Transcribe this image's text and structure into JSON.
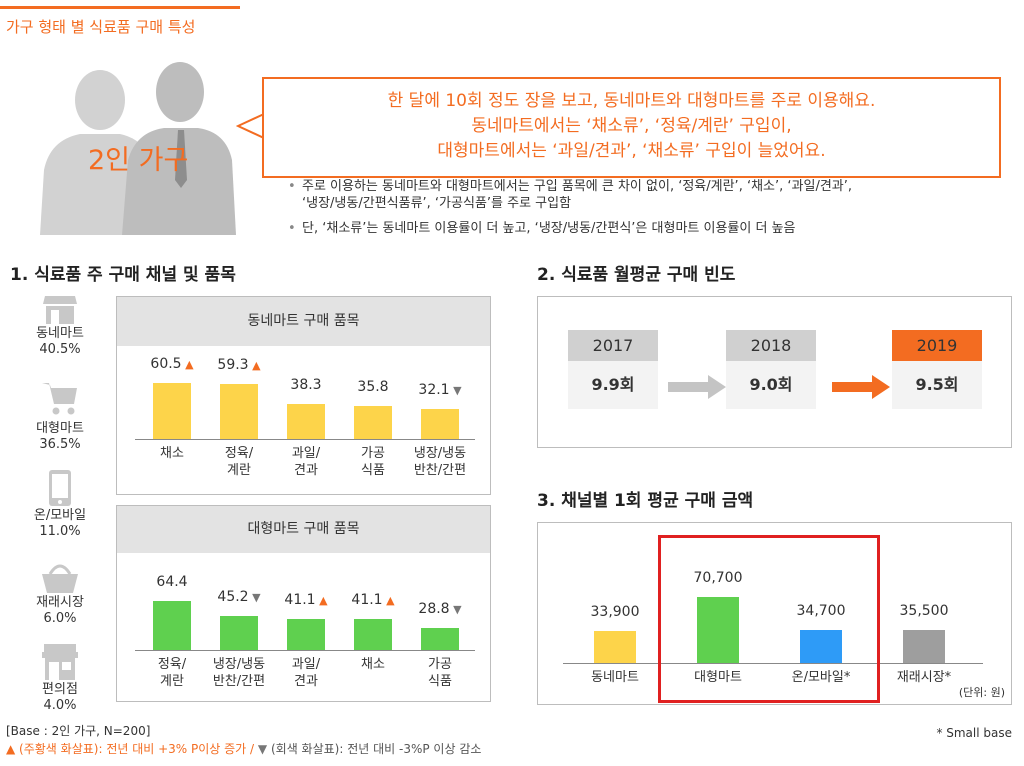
{
  "page": {
    "title": "가구 형태 별 식료품 구매 특성",
    "accent_color": "#f36c21"
  },
  "persona": {
    "label": "2인 가구",
    "callout_lines": [
      "한 달에 10회 정도 장을 보고, 동네마트와 대형마트를 주로 이용해요.",
      "동네마트에서는 ‘채소류’, ‘정육/계란’ 구입이,",
      "대형마트에서는 ‘과일/견과’, ‘채소류’ 구입이 늘었어요."
    ],
    "bullets": [
      "주로 이용하는 동네마트와 대형마트에서는  구입 품목에 큰 차이 없이, ‘정육/계란’, ‘채소’, ‘과일/견과’,",
      "‘냉장/냉동/간편식품류’, ‘가공식품’를 주로 구입함",
      "단, ‘채소류’는 동네마트 이용률이 더 높고, ‘냉장/냉동/간편식’은 대형마트 이용률이 더 높음"
    ]
  },
  "section1": {
    "title": "1. 식료품 주 구매 채널 및 품목",
    "channels": [
      {
        "name": "동네마트",
        "share": "40.5%",
        "icon": "store-icon"
      },
      {
        "name": "대형마트",
        "share": "36.5%",
        "icon": "cart-icon"
      },
      {
        "name": "온/모바일",
        "share": "11.0%",
        "icon": "mobile-icon"
      },
      {
        "name": "재래시장",
        "share": "6.0%",
        "icon": "basket-icon"
      },
      {
        "name": "편의점",
        "share": "4.0%",
        "icon": "convenience-store-icon"
      }
    ]
  },
  "section2": {
    "title": "2. 식료품 월평균 구매 빈도",
    "years": [
      {
        "year": "2017",
        "value": "9.9회"
      },
      {
        "year": "2018",
        "value": "9.0회"
      },
      {
        "year": "2019",
        "value": "9.5회"
      }
    ]
  },
  "section3": {
    "title": "3. 채널별 1회 평균 구매 금액",
    "unit": "(단위: 원)"
  },
  "footer": {
    "base": "[Base : 2인 가구, N=200]",
    "legend_orange": "▲ (주황색  화살표): 전년 대비 +3% P이상 증가 /",
    "legend_gray_marker": "▼",
    "legend_gray": "(회색 화살표): 전년 대비 -3%P 이상 감소",
    "small_base": "*  Small base"
  },
  "chart_data": [
    {
      "type": "bar",
      "title": "동네마트 구매 품목",
      "categories": [
        "채소",
        "정육/\n계란",
        "과일/\n견과",
        "가공\n식품",
        "냉장/냉동\n반찬/간편"
      ],
      "values": [
        60.5,
        59.3,
        38.3,
        35.8,
        32.1
      ],
      "value_labels": [
        "60.5",
        "59.3",
        "38.3",
        "35.8",
        "32.1"
      ],
      "markers": [
        "up",
        "up",
        "",
        "",
        "down"
      ],
      "color": "#fdd44a",
      "ylim": [
        0,
        100
      ]
    },
    {
      "type": "bar",
      "title": "대형마트 구매 품목",
      "categories": [
        "정육/\n계란",
        "냉장/냉동\n반찬/간편",
        "과일/\n견과",
        "채소",
        "가공\n식품"
      ],
      "values": [
        64.4,
        45.2,
        41.1,
        41.1,
        28.8
      ],
      "value_labels": [
        "64.4",
        "45.2",
        "41.1",
        "41.1",
        "28.8"
      ],
      "markers": [
        "",
        "down",
        "up",
        "up",
        "down"
      ],
      "color": "#5fd04f",
      "ylim": [
        0,
        100
      ]
    },
    {
      "type": "bar",
      "title": "",
      "categories": [
        "동네마트",
        "대형마트",
        "온/모바일*",
        "재래시장*"
      ],
      "values": [
        33900,
        70700,
        34700,
        35500
      ],
      "value_labels": [
        "33,900",
        "70,700",
        "34,700",
        "35,500"
      ],
      "colors": [
        "#fdd44a",
        "#5fd04f",
        "#2e9bf7",
        "#9e9e9e"
      ],
      "highlight": [
        "대형마트",
        "온/모바일*"
      ],
      "ylim": [
        0,
        80000
      ]
    }
  ]
}
